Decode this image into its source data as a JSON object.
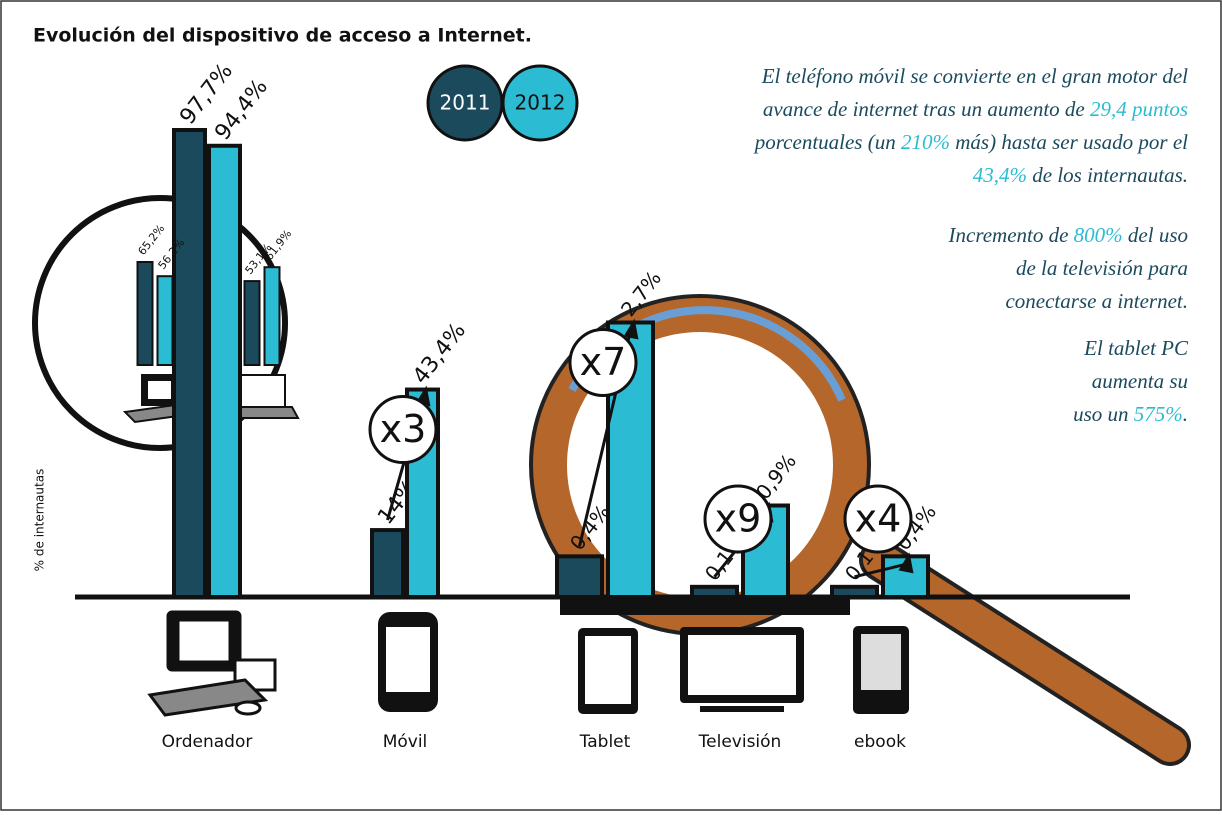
{
  "title": "Evolución del dispositivo de acceso a Internet.",
  "ylabel": "% de internautas",
  "highlight_color": "#2bbcd4",
  "notes": [
    [
      [
        "El teléfono móvil se convierte en el gran motor del"
      ],
      [
        "avance de internet tras un aumento de ",
        {
          "text": "29,4 puntos"
        }
      ],
      [
        "porcentuales (un ",
        {
          "text": "210%"
        },
        " más) hasta ser usado por el"
      ],
      [
        {
          "text": "43,4%"
        },
        " de los internautas."
      ]
    ],
    [
      [
        "Incremento de ",
        {
          "text": "800%"
        },
        " del uso"
      ],
      [
        "de la televisión para"
      ],
      [
        "conectarse a internet."
      ]
    ],
    [
      [
        "El tablet PC"
      ],
      [
        "aumenta su"
      ],
      [
        "uso un ",
        {
          "text": "575%"
        },
        "."
      ]
    ]
  ],
  "chart_data": [
    {
      "type": "bar",
      "categories": [
        "Ordenador",
        "Móvil"
      ],
      "series": [
        {
          "name": "2011",
          "color": "#1b4a5c",
          "values": [
            97.7,
            14
          ],
          "value_labels": [
            "97,7%",
            "14%"
          ]
        },
        {
          "name": "2012",
          "color": "#2bbcd4",
          "values": [
            94.4,
            43.4
          ],
          "value_labels": [
            "94,4%",
            "43,4%"
          ]
        }
      ],
      "multipliers": [
        null,
        "x3"
      ],
      "ylim": [
        0,
        100
      ]
    },
    {
      "type": "bar",
      "categories": [
        "Tablet",
        "Televisión",
        "ebook"
      ],
      "series": [
        {
          "name": "2011",
          "color": "#1b4a5c",
          "values": [
            0.4,
            0.1,
            0.1
          ],
          "value_labels": [
            "0,4%",
            "0,1%",
            "0,1%"
          ]
        },
        {
          "name": "2012",
          "color": "#2bbcd4",
          "values": [
            2.7,
            0.9,
            0.4
          ],
          "value_labels": [
            "2,7%",
            "0,9%",
            "0,4%"
          ]
        }
      ],
      "multipliers": [
        "x7",
        "x9",
        "x4"
      ],
      "ylim": [
        0,
        3
      ]
    },
    {
      "type": "bar",
      "categories": [
        null,
        null
      ],
      "series": [
        {
          "name": "2011",
          "color": "#1b4a5c",
          "values": [
            65.2,
            53.1
          ],
          "value_labels": [
            "65,2%",
            "53,1%"
          ]
        },
        {
          "name": "2012",
          "color": "#2bbcd4",
          "values": [
            56.2,
            61.9
          ],
          "value_labels": [
            "56,2%",
            "61,9%"
          ]
        }
      ],
      "ylim": [
        0,
        100
      ]
    }
  ]
}
